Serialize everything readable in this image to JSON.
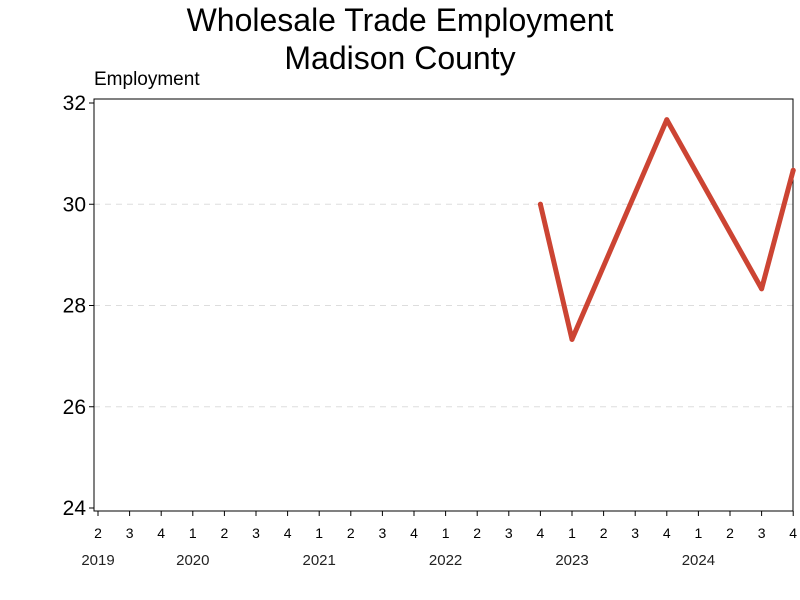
{
  "chart_data": {
    "type": "line",
    "title_lines": [
      "Wholesale Trade Employment",
      "Madison County"
    ],
    "ylabel": "Employment",
    "ylim": [
      24,
      32
    ],
    "yticks": [
      24,
      26,
      28,
      30,
      32
    ],
    "grid": "horizontal-dashed",
    "x_quarters": [
      "2",
      "3",
      "4",
      "1",
      "2",
      "3",
      "4",
      "1",
      "2",
      "3",
      "4",
      "1",
      "2",
      "3",
      "4",
      "1",
      "2",
      "3",
      "4",
      "1",
      "2",
      "3",
      "4"
    ],
    "x_years": [
      {
        "label": "2019",
        "quarter_index": 0
      },
      {
        "label": "2020",
        "quarter_index": 3
      },
      {
        "label": "2021",
        "quarter_index": 7
      },
      {
        "label": "2022",
        "quarter_index": 11
      },
      {
        "label": "2023",
        "quarter_index": 15
      },
      {
        "label": "2024",
        "quarter_index": 19
      }
    ],
    "series": [
      {
        "color": "#cc4433",
        "points": [
          {
            "quarter_index": 14,
            "value": 30.0
          },
          {
            "quarter_index": 15,
            "value": 27.33
          },
          {
            "quarter_index": 18,
            "value": 31.67
          },
          {
            "quarter_index": 21,
            "value": 28.33
          },
          {
            "quarter_index": 22,
            "value": 30.67
          }
        ]
      }
    ]
  }
}
